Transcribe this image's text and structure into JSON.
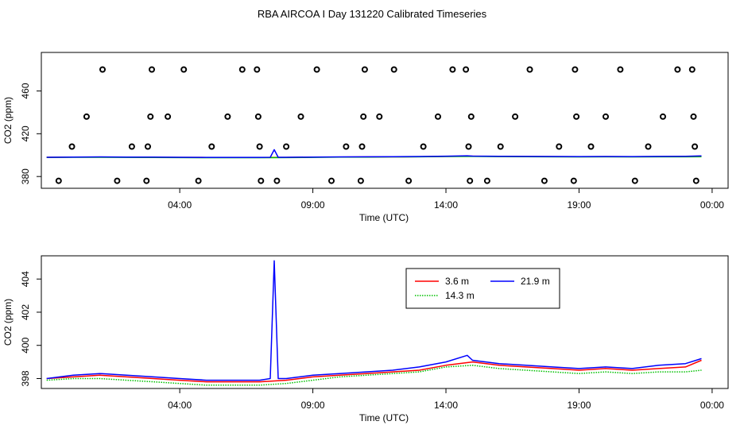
{
  "page": {
    "title": "RBA AIRCOA I  Day 131220  Calibrated Timeseries"
  },
  "colors": {
    "red": "#ff0000",
    "green": "#00c000",
    "blue": "#0000ff",
    "black": "#000000"
  },
  "chart_data": [
    {
      "id": "top",
      "type": "scatter",
      "xlabel": "Time (UTC)",
      "ylabel": "CO2 (ppm)",
      "xlim": [
        -1.2,
        24.6
      ],
      "ylim": [
        369,
        496
      ],
      "xticks": [
        4,
        9,
        14,
        19,
        24
      ],
      "xtick_labels": [
        "04:00",
        "09:00",
        "14:00",
        "19:00",
        "00:00"
      ],
      "yticks": [
        380,
        420,
        460
      ],
      "ytick_labels": [
        "380",
        "420",
        "460"
      ],
      "points": [
        [
          -0.55,
          376
        ],
        [
          -0.05,
          408
        ],
        [
          0.5,
          436
        ],
        [
          1.1,
          480
        ],
        [
          1.65,
          376
        ],
        [
          2.2,
          408
        ],
        [
          2.75,
          376
        ],
        [
          2.8,
          408
        ],
        [
          2.9,
          436
        ],
        [
          2.95,
          480
        ],
        [
          3.55,
          436
        ],
        [
          4.15,
          480
        ],
        [
          4.7,
          376
        ],
        [
          5.2,
          408
        ],
        [
          5.8,
          436
        ],
        [
          6.35,
          480
        ],
        [
          6.9,
          480
        ],
        [
          6.95,
          436
        ],
        [
          7.0,
          408
        ],
        [
          7.05,
          376
        ],
        [
          7.65,
          376
        ],
        [
          8.0,
          408
        ],
        [
          8.55,
          436
        ],
        [
          9.15,
          480
        ],
        [
          9.7,
          376
        ],
        [
          10.25,
          408
        ],
        [
          10.8,
          376
        ],
        [
          10.85,
          408
        ],
        [
          10.9,
          436
        ],
        [
          10.95,
          480
        ],
        [
          11.5,
          436
        ],
        [
          12.05,
          480
        ],
        [
          12.6,
          376
        ],
        [
          13.15,
          408
        ],
        [
          13.7,
          436
        ],
        [
          14.25,
          480
        ],
        [
          14.75,
          480
        ],
        [
          14.85,
          408
        ],
        [
          14.9,
          376
        ],
        [
          14.95,
          436
        ],
        [
          15.55,
          376
        ],
        [
          16.05,
          408
        ],
        [
          16.6,
          436
        ],
        [
          17.15,
          480
        ],
        [
          17.7,
          376
        ],
        [
          18.25,
          408
        ],
        [
          18.8,
          376
        ],
        [
          18.85,
          480
        ],
        [
          18.9,
          436
        ],
        [
          19.45,
          408
        ],
        [
          20.0,
          436
        ],
        [
          20.55,
          480
        ],
        [
          21.1,
          376
        ],
        [
          21.6,
          408
        ],
        [
          22.15,
          436
        ],
        [
          22.7,
          480
        ],
        [
          23.25,
          480
        ],
        [
          23.3,
          436
        ],
        [
          23.35,
          408
        ],
        [
          23.4,
          376
        ]
      ]
    },
    {
      "id": "bottom",
      "type": "line",
      "xlabel": "Time (UTC)",
      "ylabel": "CO2 (ppm)",
      "xlim": [
        -1.2,
        24.6
      ],
      "ylim": [
        397.4,
        405.4
      ],
      "xticks": [
        4,
        9,
        14,
        19,
        24
      ],
      "xtick_labels": [
        "04:00",
        "09:00",
        "14:00",
        "19:00",
        "00:00"
      ],
      "yticks": [
        398,
        400,
        402,
        404
      ],
      "ytick_labels": [
        "398",
        "400",
        "402",
        "404"
      ],
      "legend": {
        "position": "top-center",
        "entries": [
          "3.6 m",
          "14.3 m",
          "21.9 m"
        ]
      },
      "series": [
        {
          "name": "3.6 m",
          "color": "#ff0000",
          "dash": "solid",
          "points": [
            [
              -1,
              398.0
            ],
            [
              0,
              398.1
            ],
            [
              1,
              398.2
            ],
            [
              2,
              398.1
            ],
            [
              3,
              398.0
            ],
            [
              4,
              397.9
            ],
            [
              5,
              397.8
            ],
            [
              6,
              397.8
            ],
            [
              7,
              397.8
            ],
            [
              8,
              397.9
            ],
            [
              9,
              398.1
            ],
            [
              10,
              398.2
            ],
            [
              11,
              398.3
            ],
            [
              12,
              398.4
            ],
            [
              13,
              398.5
            ],
            [
              14,
              398.8
            ],
            [
              15,
              399.0
            ],
            [
              16,
              398.8
            ],
            [
              17,
              398.7
            ],
            [
              18,
              398.6
            ],
            [
              19,
              398.5
            ],
            [
              20,
              398.6
            ],
            [
              21,
              398.5
            ],
            [
              22,
              398.6
            ],
            [
              23,
              398.7
            ],
            [
              23.6,
              399.1
            ]
          ]
        },
        {
          "name": "14.3 m",
          "color": "#00c000",
          "dash": "dotted",
          "points": [
            [
              -1,
              397.9
            ],
            [
              0,
              398.0
            ],
            [
              1,
              398.0
            ],
            [
              2,
              397.9
            ],
            [
              3,
              397.8
            ],
            [
              4,
              397.7
            ],
            [
              5,
              397.6
            ],
            [
              6,
              397.6
            ],
            [
              7,
              397.6
            ],
            [
              8,
              397.7
            ],
            [
              9,
              397.9
            ],
            [
              10,
              398.1
            ],
            [
              11,
              398.2
            ],
            [
              12,
              398.3
            ],
            [
              13,
              398.4
            ],
            [
              14,
              398.7
            ],
            [
              15,
              398.8
            ],
            [
              16,
              398.6
            ],
            [
              17,
              398.5
            ],
            [
              18,
              398.4
            ],
            [
              19,
              398.3
            ],
            [
              20,
              398.4
            ],
            [
              21,
              398.3
            ],
            [
              22,
              398.4
            ],
            [
              23,
              398.4
            ],
            [
              23.6,
              398.5
            ]
          ]
        },
        {
          "name": "21.9 m",
          "color": "#0000ff",
          "dash": "solid",
          "points": [
            [
              -1,
              398.0
            ],
            [
              0,
              398.2
            ],
            [
              1,
              398.3
            ],
            [
              2,
              398.2
            ],
            [
              3,
              398.1
            ],
            [
              4,
              398.0
            ],
            [
              5,
              397.9
            ],
            [
              6,
              397.9
            ],
            [
              7,
              397.9
            ],
            [
              7.4,
              398.0
            ],
            [
              7.55,
              405.1
            ],
            [
              7.7,
              398.0
            ],
            [
              8,
              398.0
            ],
            [
              9,
              398.2
            ],
            [
              10,
              398.3
            ],
            [
              11,
              398.4
            ],
            [
              12,
              398.5
            ],
            [
              13,
              398.7
            ],
            [
              14,
              399.0
            ],
            [
              14.8,
              399.4
            ],
            [
              15,
              399.1
            ],
            [
              16,
              398.9
            ],
            [
              17,
              398.8
            ],
            [
              18,
              398.7
            ],
            [
              19,
              398.6
            ],
            [
              20,
              398.7
            ],
            [
              21,
              398.6
            ],
            [
              22,
              398.8
            ],
            [
              23,
              398.9
            ],
            [
              23.6,
              399.2
            ]
          ]
        }
      ]
    }
  ]
}
